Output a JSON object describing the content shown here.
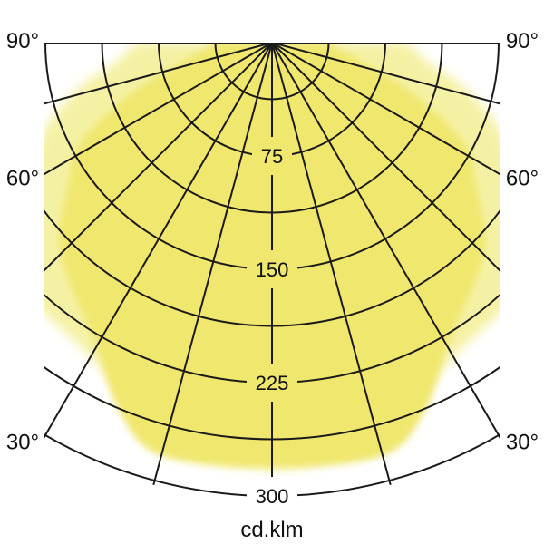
{
  "chart_data": {
    "type": "polar",
    "subtype": "photometric-luminous-intensity",
    "units_label": "cd.klm",
    "angle_tick_labels": [
      "90°",
      "60°",
      "30°"
    ],
    "angle_ticks_deg": [
      90,
      60,
      30
    ],
    "angle_labels_mirrored_both_sides": true,
    "radial_tick_labels": [
      "75",
      "150",
      "225",
      "300"
    ],
    "radial_ticks": [
      75,
      150,
      225,
      300
    ],
    "radial_grid_step": 37.5,
    "radial_max": 300,
    "ray_step_deg": 15,
    "grid_on": true,
    "legend_position": "none",
    "series": [
      {
        "name": "pale-yellow-lobe",
        "color": "#F5F1A4",
        "angles_deg": [
          0,
          15,
          30,
          45,
          55,
          62.5,
          70,
          77.5,
          82.5,
          90
        ],
        "values_cd_klm": [
          282,
          272,
          240,
          230,
          196,
          178,
          158,
          128,
          105,
          90
        ]
      },
      {
        "name": "strong-yellow-lobe",
        "color": "#F0E76E",
        "angles_deg": [
          0,
          15,
          22.5,
          30,
          45,
          55,
          62.5,
          70,
          77.5,
          90
        ],
        "values_cd_klm": [
          281,
          283,
          264,
          232,
          198,
          165,
          143,
          100,
          62,
          37
        ]
      }
    ],
    "colors": {
      "grid": "#1A1A1A",
      "text": "#111111",
      "background": "#FFFFFF"
    }
  }
}
